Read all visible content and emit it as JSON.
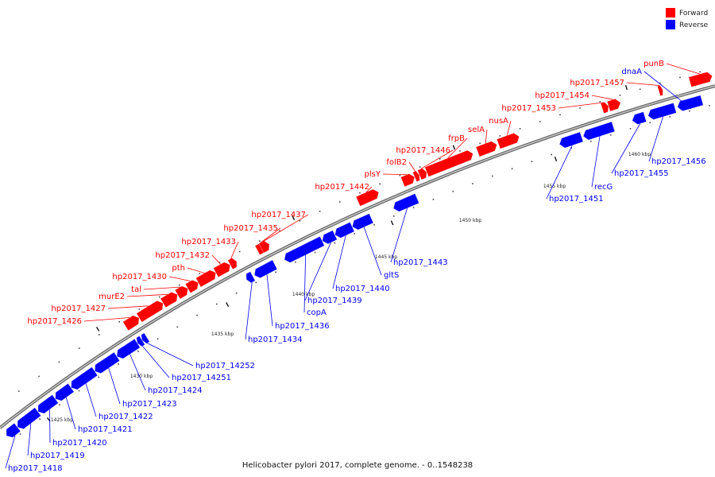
{
  "title": "Helicobacter pylori 2017, complete genome. - 0..1548238",
  "legend": [
    {
      "label": "Forward",
      "color": "#ff0000"
    },
    {
      "label": "Reverse",
      "color": "#0000ff"
    }
  ],
  "colors": {
    "forward": "#ff0000",
    "reverse": "#0000ff",
    "backbone": "#888888"
  },
  "scale_labels": [
    "1425 kbp",
    "1430 kbp",
    "1435 kbp",
    "1440 kbp",
    "1445 kbp",
    "1450 kbp",
    "1455 kbp",
    "1460 kbp"
  ],
  "genes": [
    {
      "name": "hp2017_1418",
      "strand": "reverse"
    },
    {
      "name": "hp2017_1419",
      "strand": "reverse"
    },
    {
      "name": "hp2017_1420",
      "strand": "reverse"
    },
    {
      "name": "hp2017_1421",
      "strand": "reverse"
    },
    {
      "name": "hp2017_1422",
      "strand": "reverse"
    },
    {
      "name": "hp2017_1423",
      "strand": "reverse"
    },
    {
      "name": "hp2017_1424",
      "strand": "reverse"
    },
    {
      "name": "hp2017_14251",
      "strand": "reverse"
    },
    {
      "name": "hp2017_14252",
      "strand": "reverse"
    },
    {
      "name": "hp2017_1426",
      "strand": "forward"
    },
    {
      "name": "hp2017_1427",
      "strand": "forward"
    },
    {
      "name": "murE2",
      "strand": "forward"
    },
    {
      "name": "tal",
      "strand": "forward"
    },
    {
      "name": "hp2017_1430",
      "strand": "forward"
    },
    {
      "name": "pth",
      "strand": "forward"
    },
    {
      "name": "hp2017_1432",
      "strand": "forward"
    },
    {
      "name": "hp2017_1433",
      "strand": "forward"
    },
    {
      "name": "hp2017_1434",
      "strand": "reverse"
    },
    {
      "name": "hp2017_1435",
      "strand": "forward"
    },
    {
      "name": "hp2017_1436",
      "strand": "reverse"
    },
    {
      "name": "hp2017_1437",
      "strand": "forward"
    },
    {
      "name": "copA",
      "strand": "reverse"
    },
    {
      "name": "hp2017_1439",
      "strand": "reverse"
    },
    {
      "name": "hp2017_1440",
      "strand": "reverse"
    },
    {
      "name": "gltS",
      "strand": "reverse"
    },
    {
      "name": "hp2017_1442",
      "strand": "forward"
    },
    {
      "name": "hp2017_1443",
      "strand": "reverse"
    },
    {
      "name": "plsY",
      "strand": "forward"
    },
    {
      "name": "folB2",
      "strand": "forward"
    },
    {
      "name": "hp2017_1446",
      "strand": "forward"
    },
    {
      "name": "frpB",
      "strand": "forward"
    },
    {
      "name": "selA",
      "strand": "forward"
    },
    {
      "name": "nusA",
      "strand": "forward"
    },
    {
      "name": "hp2017_1451",
      "strand": "reverse"
    },
    {
      "name": "recG",
      "strand": "reverse"
    },
    {
      "name": "hp2017_1453",
      "strand": "forward"
    },
    {
      "name": "hp2017_1454",
      "strand": "forward"
    },
    {
      "name": "hp2017_1455",
      "strand": "reverse"
    },
    {
      "name": "hp2017_1456",
      "strand": "reverse"
    },
    {
      "name": "hp2017_1457",
      "strand": "forward"
    },
    {
      "name": "dnaA",
      "strand": "reverse"
    },
    {
      "name": "punB",
      "strand": "forward"
    }
  ]
}
